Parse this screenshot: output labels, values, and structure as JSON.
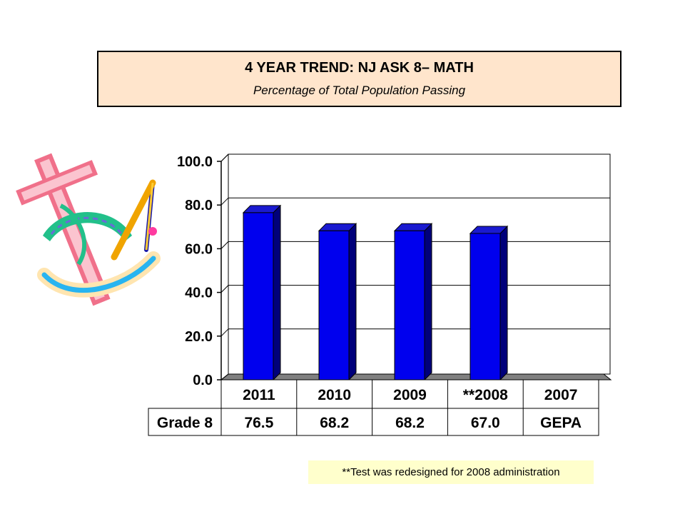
{
  "title": "4 YEAR TREND:  NJ ASK 8– MATH",
  "subtitle": "Percentage of Total Population Passing",
  "footnote": "**Test was redesigned for 2008 administration",
  "colors": {
    "bar": "#0000ee",
    "bar_side": "#00007a",
    "bar_top": "#1a1ad0",
    "title_bg": "#ffe5cc",
    "footnote_bg": "#ffffcc"
  },
  "decoration_icon": "math-tools-clipart-icon",
  "chart_data": {
    "type": "bar",
    "categories": [
      "2011",
      "2010",
      "2009",
      "**2008",
      "2007"
    ],
    "series": [
      {
        "name": "Grade 8",
        "values": [
          76.5,
          68.2,
          68.2,
          67.0,
          null
        ]
      }
    ],
    "table_values": [
      "76.5",
      "68.2",
      "68.2",
      "67.0",
      "GEPA"
    ],
    "yticks": [
      "100.0",
      "80.0",
      "60.0",
      "40.0",
      "20.0",
      "0.0"
    ],
    "ylim": [
      0,
      100
    ],
    "ytick_step": 20,
    "grid": true,
    "legend": "data table below chart"
  }
}
